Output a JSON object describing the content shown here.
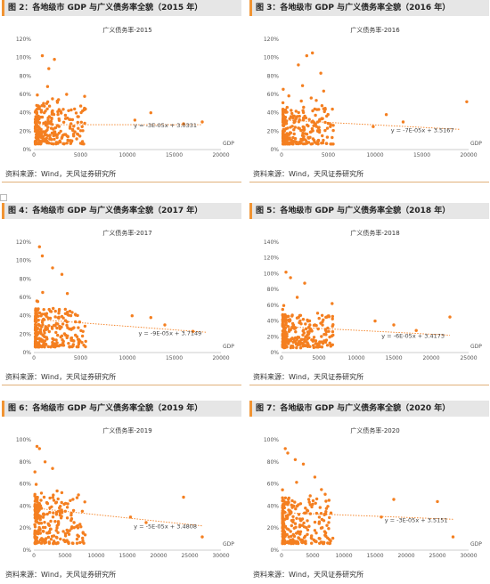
{
  "source_text": "资料来源：Wind，天风证券研究所",
  "colors": {
    "marker": "#f47f20",
    "trend": "#f47f20",
    "title_accent": "#f19433"
  },
  "panels": [
    {
      "title": "图 2：各地级市 GDP 与广义债务率全貌（2015 年）",
      "chart_data": {
        "type": "scatter",
        "title": "广义债务率-2015",
        "xlabel": "GDP",
        "xlim": [
          0,
          20000
        ],
        "xticks": [
          0,
          5000,
          10000,
          15000,
          20000
        ],
        "ylim": [
          0,
          1.2
        ],
        "yticks": [
          0,
          0.2,
          0.4,
          0.6,
          0.8,
          1.0,
          1.2
        ],
        "yticklabels": [
          "0%",
          "20%",
          "40%",
          "60%",
          "80%",
          "100%",
          "120%"
        ],
        "trend_label": "y = -3E-05x + 3.0331",
        "trend": [
          [
            300,
            0.27
          ],
          [
            18000,
            0.27
          ]
        ],
        "seed": 11,
        "n": 260,
        "outliers": [
          [
            16000,
            0.28
          ],
          [
            18000,
            0.3
          ],
          [
            12500,
            0.4
          ],
          [
            10800,
            0.32
          ],
          [
            2200,
            0.98
          ],
          [
            900,
            1.02
          ],
          [
            1600,
            0.88
          ],
          [
            3500,
            0.6
          ]
        ]
      }
    },
    {
      "title": "图 3：各地级市 GDP 与广义债务率全貌（2016 年）",
      "chart_data": {
        "type": "scatter",
        "title": "广义债务率-2016",
        "xlabel": "GDP",
        "xlim": [
          0,
          20000
        ],
        "xticks": [
          0,
          5000,
          10000,
          15000,
          20000
        ],
        "ylim": [
          0,
          1.2
        ],
        "yticks": [
          0,
          0.2,
          0.4,
          0.6,
          0.8,
          1.0,
          1.2
        ],
        "yticklabels": [
          "0%",
          "20%",
          "40%",
          "60%",
          "80%",
          "100%",
          "120%"
        ],
        "trend_label": "y = -7E-05x + 3.5167",
        "trend": [
          [
            300,
            0.32
          ],
          [
            19000,
            0.22
          ]
        ],
        "seed": 23,
        "n": 260,
        "outliers": [
          [
            19800,
            0.52
          ],
          [
            13000,
            0.3
          ],
          [
            11200,
            0.38
          ],
          [
            9800,
            0.25
          ],
          [
            2700,
            1.02
          ],
          [
            3300,
            1.05
          ],
          [
            1800,
            0.92
          ],
          [
            4200,
            0.83
          ]
        ]
      }
    },
    {
      "title": "图 4：各地级市 GDP 与广义债务率全貌（2017 年）",
      "chart_data": {
        "type": "scatter",
        "title": "广义债务率-2017",
        "xlabel": "GDP",
        "xlim": [
          0,
          20000
        ],
        "xticks": [
          0,
          5000,
          10000,
          15000,
          20000
        ],
        "ylim": [
          0,
          1.2
        ],
        "yticks": [
          0,
          0.2,
          0.4,
          0.6,
          0.8,
          1.0,
          1.2
        ],
        "yticklabels": [
          "0%",
          "20%",
          "40%",
          "60%",
          "80%",
          "100%",
          "120%"
        ],
        "trend_label": "y = -9E-05x + 3.7149",
        "trend": [
          [
            300,
            0.36
          ],
          [
            18500,
            0.22
          ]
        ],
        "seed": 37,
        "n": 260,
        "outliers": [
          [
            17000,
            0.23
          ],
          [
            14000,
            0.3
          ],
          [
            12500,
            0.38
          ],
          [
            10500,
            0.4
          ],
          [
            600,
            1.15
          ],
          [
            900,
            1.05
          ],
          [
            3000,
            0.85
          ],
          [
            2000,
            0.92
          ]
        ]
      }
    },
    {
      "title": "图 5：各地级市 GDP 与广义债务率全貌（2018 年）",
      "chart_data": {
        "type": "scatter",
        "title": "广义债务率-2018",
        "xlabel": "GDP",
        "xlim": [
          0,
          25000
        ],
        "xticks": [
          0,
          5000,
          10000,
          15000,
          20000,
          25000
        ],
        "ylim": [
          0,
          1.4
        ],
        "yticks": [
          0,
          0.2,
          0.4,
          0.6,
          0.8,
          1.0,
          1.2,
          1.4
        ],
        "yticklabels": [
          "0%",
          "20%",
          "40%",
          "60%",
          "80%",
          "100%",
          "120%",
          "140%"
        ],
        "trend_label": "y = -6E-05x + 3.4173",
        "trend": [
          [
            300,
            0.33
          ],
          [
            22500,
            0.22
          ]
        ],
        "seed": 41,
        "n": 260,
        "outliers": [
          [
            22500,
            0.45
          ],
          [
            18000,
            0.28
          ],
          [
            15000,
            0.35
          ],
          [
            12500,
            0.4
          ],
          [
            600,
            1.02
          ],
          [
            1200,
            0.95
          ],
          [
            3100,
            0.88
          ],
          [
            2100,
            0.7
          ]
        ]
      }
    },
    {
      "title": "图 6：各地级市 GDP 与广义债务率全貌（2019 年）",
      "chart_data": {
        "type": "scatter",
        "title": "广义债务率-2019",
        "xlabel": "GDP",
        "xlim": [
          0,
          30000
        ],
        "xticks": [
          0,
          5000,
          10000,
          15000,
          20000,
          25000,
          30000
        ],
        "ylim": [
          0,
          1.0
        ],
        "yticks": [
          0,
          0.2,
          0.4,
          0.6,
          0.8,
          1.0
        ],
        "yticklabels": [
          "0%",
          "20%",
          "40%",
          "60%",
          "80%",
          "100%"
        ],
        "trend_label": "y = -5E-05x + 3.4808",
        "trend": [
          [
            300,
            0.38
          ],
          [
            27000,
            0.22
          ]
        ],
        "seed": 53,
        "n": 260,
        "outliers": [
          [
            27000,
            0.12
          ],
          [
            24000,
            0.48
          ],
          [
            18000,
            0.25
          ],
          [
            15500,
            0.3
          ],
          [
            500,
            0.94
          ],
          [
            900,
            0.92
          ],
          [
            3000,
            0.74
          ],
          [
            1800,
            0.8
          ]
        ]
      }
    },
    {
      "title": "图 7：各地级市 GDP 与广义债务率全貌（2020 年）",
      "chart_data": {
        "type": "scatter",
        "title": "广义债务率-2020",
        "xlabel": "GDP",
        "xlim": [
          0,
          30000
        ],
        "xticks": [
          0,
          5000,
          10000,
          15000,
          20000,
          25000,
          30000
        ],
        "ylim": [
          0,
          1.0
        ],
        "yticks": [
          0,
          0.2,
          0.4,
          0.6,
          0.8,
          1.0
        ],
        "yticklabels": [
          "0%",
          "20%",
          "40%",
          "60%",
          "80%",
          "100%"
        ],
        "trend_label": "y = -3E-05x + 3.5151",
        "trend": [
          [
            300,
            0.34
          ],
          [
            27500,
            0.28
          ]
        ],
        "seed": 67,
        "n": 260,
        "outliers": [
          [
            27500,
            0.12
          ],
          [
            25000,
            0.44
          ],
          [
            18000,
            0.46
          ],
          [
            16000,
            0.3
          ],
          [
            600,
            0.92
          ],
          [
            1000,
            0.88
          ],
          [
            3500,
            0.78
          ],
          [
            2200,
            0.82
          ]
        ]
      }
    }
  ]
}
